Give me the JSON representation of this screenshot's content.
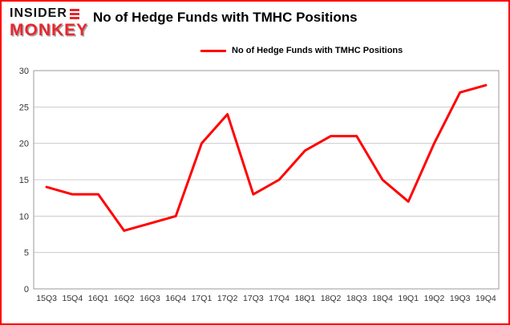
{
  "brand": {
    "line1": "INSIDER",
    "line2": "MONKEY"
  },
  "title": "No of Hedge Funds with TMHC Positions",
  "legend": {
    "label": "No of Hedge Funds with TMHC Positions"
  },
  "chart_data": {
    "type": "line",
    "title": "No of Hedge Funds with TMHC Positions",
    "categories": [
      "15Q3",
      "15Q4",
      "16Q1",
      "16Q2",
      "16Q3",
      "16Q4",
      "17Q1",
      "17Q2",
      "17Q3",
      "17Q4",
      "18Q1",
      "18Q2",
      "18Q3",
      "18Q4",
      "19Q1",
      "19Q2",
      "19Q3",
      "19Q4"
    ],
    "values": [
      14,
      13,
      13,
      8,
      9,
      10,
      20,
      24,
      13,
      15,
      19,
      21,
      21,
      15,
      12,
      20,
      27,
      28
    ],
    "xlabel": "",
    "ylabel": "",
    "ylim": [
      0,
      30
    ],
    "yticks": [
      0,
      5,
      10,
      15,
      20,
      25,
      30
    ],
    "grid": true,
    "legend_position": "top",
    "line_color": "#fe0000",
    "colors": {
      "grid": "#cccccc",
      "axis": "#9a9a9a",
      "tick_label": "#333333",
      "frame_border": "#fe0000"
    }
  }
}
